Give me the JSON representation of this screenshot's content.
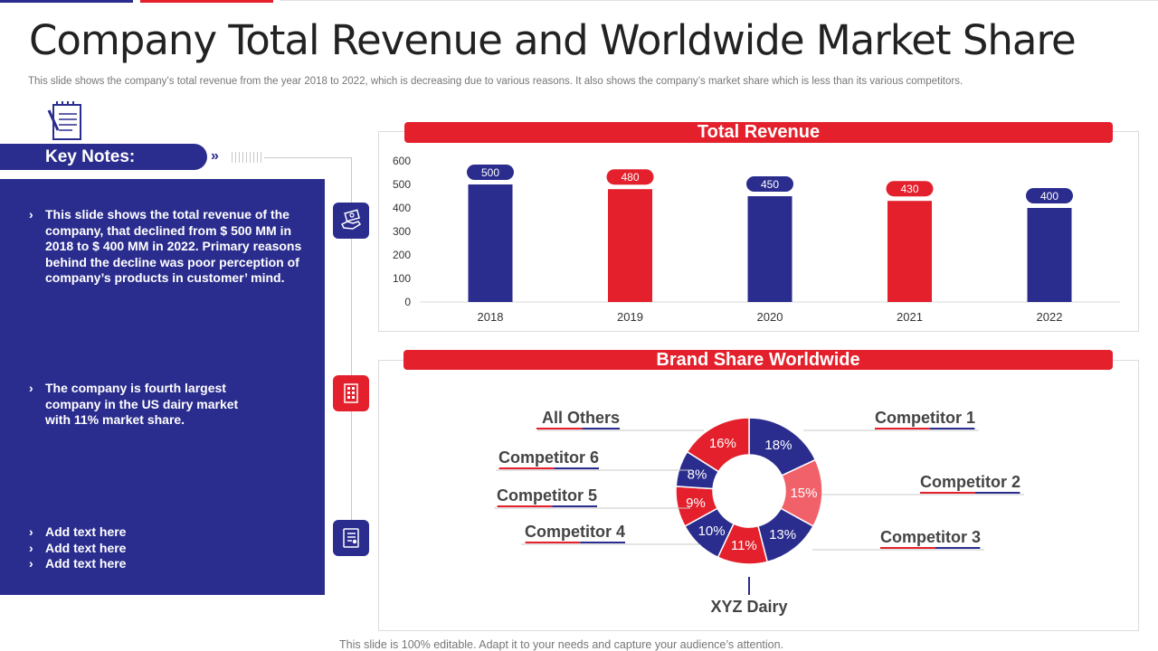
{
  "title": "Company Total Revenue and Worldwide Market Share",
  "subtitle": "This slide shows the company’s total revenue from the year 2018 to 2022, which is decreasing due to various reasons. It also shows the company’s market share which is less than its various competitors.",
  "key_notes": {
    "label": "Key Notes:",
    "chevrons": "»",
    "bullet": "›",
    "note1": "This slide shows the total revenue of the company, that declined from $ 500 MM in 2018 to $ 400 MM in 2022. Primary reasons behind the decline was poor perception of company’s products in customer’ mind.",
    "note2": "The company is fourth largest company in the US dairy market with 11% market share.",
    "extra": [
      "Add text here",
      "Add text here",
      "Add text here"
    ]
  },
  "colors": {
    "blue": "#2b2d8e",
    "red": "#e3202b",
    "light_red": "#f0616a"
  },
  "chart_data": [
    {
      "type": "bar",
      "title": "Total Revenue",
      "categories": [
        "2018",
        "2019",
        "2020",
        "2021",
        "2022"
      ],
      "values": [
        500,
        480,
        450,
        430,
        400
      ],
      "bar_colors": [
        "#2b2d8e",
        "#e3202b",
        "#2b2d8e",
        "#e3202b",
        "#2b2d8e"
      ],
      "ylim": [
        0,
        600
      ],
      "yticks": [
        0,
        100,
        200,
        300,
        400,
        500,
        600
      ],
      "xlabel": "",
      "ylabel": "",
      "grid": false
    },
    {
      "type": "pie",
      "title": "Brand Share Worldwide",
      "donut": true,
      "slices": [
        {
          "label": "Competitor 1",
          "value": 18,
          "display": "18%",
          "color": "#2b2d8e"
        },
        {
          "label": "Competitor 2",
          "value": 15,
          "display": "15%",
          "color": "#f0616a"
        },
        {
          "label": "Competitor 3",
          "value": 13,
          "display": "13%",
          "color": "#2b2d8e"
        },
        {
          "label": "XYZ Dairy",
          "value": 11,
          "display": "11%",
          "color": "#e3202b"
        },
        {
          "label": "Competitor 4",
          "value": 10,
          "display": "10%",
          "color": "#2b2d8e"
        },
        {
          "label": "Competitor 5",
          "value": 9,
          "display": "9%",
          "color": "#e3202b"
        },
        {
          "label": "Competitor 6",
          "value": 8,
          "display": "8%",
          "color": "#2b2d8e"
        },
        {
          "label": "All Others",
          "value": 16,
          "display": "16%",
          "color": "#e3202b"
        }
      ]
    }
  ],
  "footer": "This slide is 100% editable. Adapt it to your needs and capture your audience’s attention."
}
